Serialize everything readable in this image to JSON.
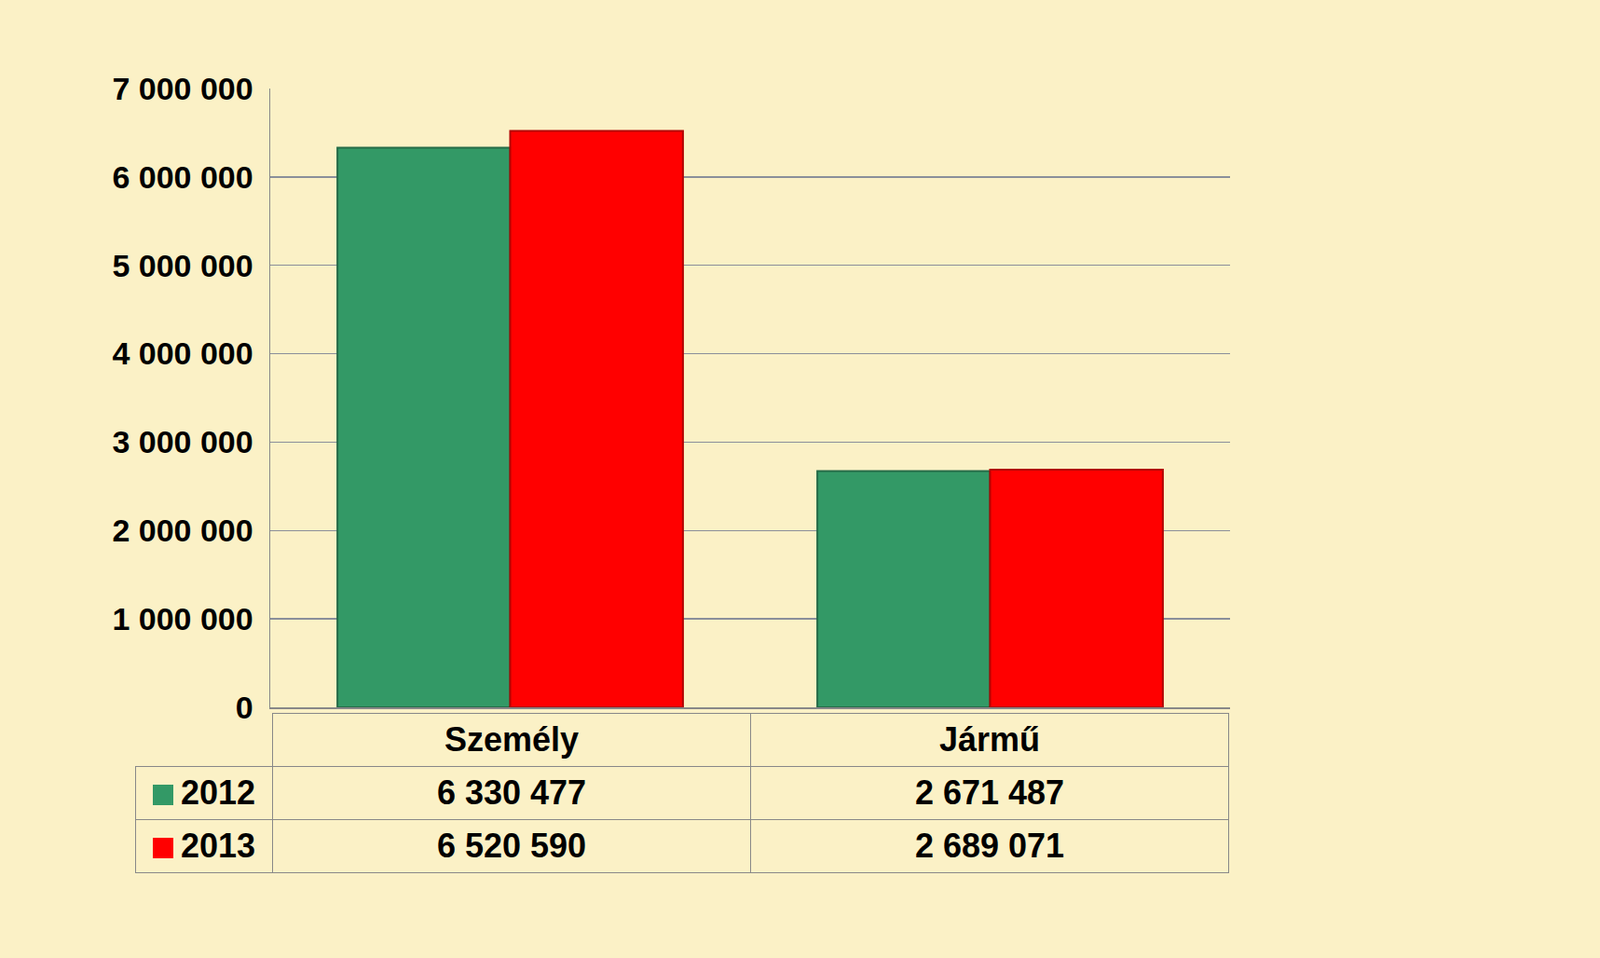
{
  "chart_data": {
    "type": "bar",
    "categories": [
      "Személy",
      "Jármű"
    ],
    "series": [
      {
        "name": "2012",
        "color": "#339966",
        "values": [
          6330477,
          2671487
        ],
        "value_labels": [
          "6 330 477",
          "2 671 487"
        ]
      },
      {
        "name": "2013",
        "color": "#ff0000",
        "values": [
          6520590,
          2689071
        ],
        "value_labels": [
          "6 520 590",
          "2 689 071"
        ]
      }
    ],
    "ylim": [
      0,
      7000000
    ],
    "yticks": [
      0,
      {
        "value": 1000000,
        "label": "1 000 000"
      },
      {
        "value": 2000000,
        "label": "2 000 000"
      },
      {
        "value": 3000000,
        "label": "3 000 000"
      },
      {
        "value": 4000000,
        "label": "4 000 000"
      },
      {
        "value": 5000000,
        "label": "5 000 000"
      },
      {
        "value": 6000000,
        "label": "6 000 000"
      },
      {
        "value": 7000000,
        "label": "7 000 000"
      }
    ],
    "grid": true,
    "data_labels": true
  }
}
